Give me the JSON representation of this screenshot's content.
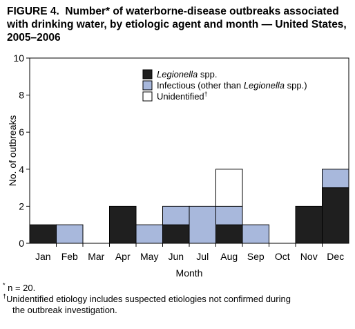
{
  "chart_data": {
    "type": "bar",
    "stacked": true,
    "title": "FIGURE 4. Number* of waterborne-disease outbreaks associated with drinking water, by etiologic agent and month — United States, 2005–2006",
    "xlabel": "Month",
    "ylabel": "No. of outbreaks",
    "ylim": [
      0,
      10
    ],
    "yticks": [
      0,
      2,
      4,
      6,
      8,
      10
    ],
    "grid": false,
    "legend": "top-center",
    "categories": [
      "Jan",
      "Feb",
      "Mar",
      "Apr",
      "May",
      "Jun",
      "Jul",
      "Aug",
      "Sep",
      "Oct",
      "Nov",
      "Dec"
    ],
    "series": [
      {
        "name_italic": "Legionella",
        "name_rest": " spp.",
        "name": "Legionella spp.",
        "color": "#1f1f1f",
        "values": [
          1,
          0,
          0,
          2,
          0,
          1,
          0,
          1,
          0,
          0,
          2,
          3
        ]
      },
      {
        "name_pre": "Infectious (other than ",
        "name_italic": "Legionella",
        "name_rest": " spp.)",
        "name": "Infectious (other than Legionella spp.)",
        "color": "#a8b8dc",
        "values": [
          0,
          1,
          0,
          0,
          1,
          1,
          2,
          1,
          1,
          0,
          0,
          1
        ]
      },
      {
        "name_pre": "Unidentified",
        "name_sup": "†",
        "name": "Unidentified†",
        "color": "#ffffff",
        "values": [
          0,
          0,
          0,
          0,
          0,
          0,
          0,
          2,
          0,
          0,
          0,
          0
        ]
      }
    ]
  },
  "title": {
    "label": "FIGURE 4.",
    "text": "Number* of waterborne-disease outbreaks associated with drinking water, by etiologic agent and month — United States, 2005–2006"
  },
  "footnotes": {
    "n_mark": "*",
    "n_text": "n = 20.",
    "dagger_mark": "†",
    "dagger_text": "Unidentified etiology includes suspected etiologies not confirmed during",
    "dagger_cont": "the outbreak investigation."
  }
}
